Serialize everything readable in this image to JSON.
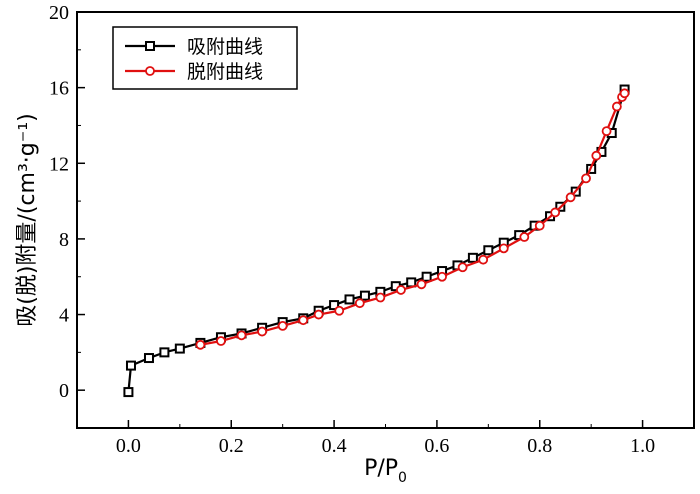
{
  "chart_data": {
    "type": "line",
    "xlabel": {
      "base": "P/P",
      "sub": "0"
    },
    "ylabel": "吸(脱)附量/(cm³·g⁻¹)",
    "xlim": [
      -0.1,
      1.1
    ],
    "ylim": [
      -2,
      20
    ],
    "x_ticks": [
      "0.0",
      "0.2",
      "0.4",
      "0.6",
      "0.8",
      "1.0"
    ],
    "y_ticks": [
      "0",
      "4",
      "8",
      "12",
      "16",
      "20"
    ],
    "legend_position": "top-left",
    "grid": false,
    "series": [
      {
        "name": "吸附曲线",
        "color": "#000000",
        "marker": "square",
        "x": [
          0.0,
          0.005,
          0.04,
          0.07,
          0.1,
          0.14,
          0.18,
          0.22,
          0.26,
          0.3,
          0.34,
          0.37,
          0.4,
          0.43,
          0.46,
          0.49,
          0.52,
          0.55,
          0.58,
          0.61,
          0.64,
          0.67,
          0.7,
          0.73,
          0.76,
          0.79,
          0.82,
          0.84,
          0.87,
          0.9,
          0.92,
          0.94,
          0.965
        ],
        "values": [
          -0.1,
          1.3,
          1.7,
          2.0,
          2.2,
          2.5,
          2.8,
          3.0,
          3.3,
          3.6,
          3.8,
          4.2,
          4.5,
          4.8,
          5.0,
          5.2,
          5.5,
          5.7,
          6.0,
          6.3,
          6.6,
          7.0,
          7.4,
          7.8,
          8.2,
          8.7,
          9.2,
          9.7,
          10.5,
          11.7,
          12.6,
          13.6,
          15.9
        ]
      },
      {
        "name": "脱附曲线",
        "color": "#e01010",
        "marker": "circle",
        "x": [
          0.14,
          0.18,
          0.22,
          0.26,
          0.3,
          0.34,
          0.37,
          0.41,
          0.45,
          0.49,
          0.53,
          0.57,
          0.61,
          0.65,
          0.69,
          0.73,
          0.77,
          0.8,
          0.83,
          0.86,
          0.89,
          0.91,
          0.93,
          0.95,
          0.96,
          0.965
        ],
        "values": [
          2.4,
          2.6,
          2.9,
          3.1,
          3.4,
          3.7,
          4.0,
          4.2,
          4.6,
          4.9,
          5.3,
          5.6,
          6.0,
          6.5,
          6.9,
          7.5,
          8.1,
          8.7,
          9.4,
          10.2,
          11.2,
          12.4,
          13.7,
          15.0,
          15.5,
          15.7
        ]
      }
    ]
  }
}
